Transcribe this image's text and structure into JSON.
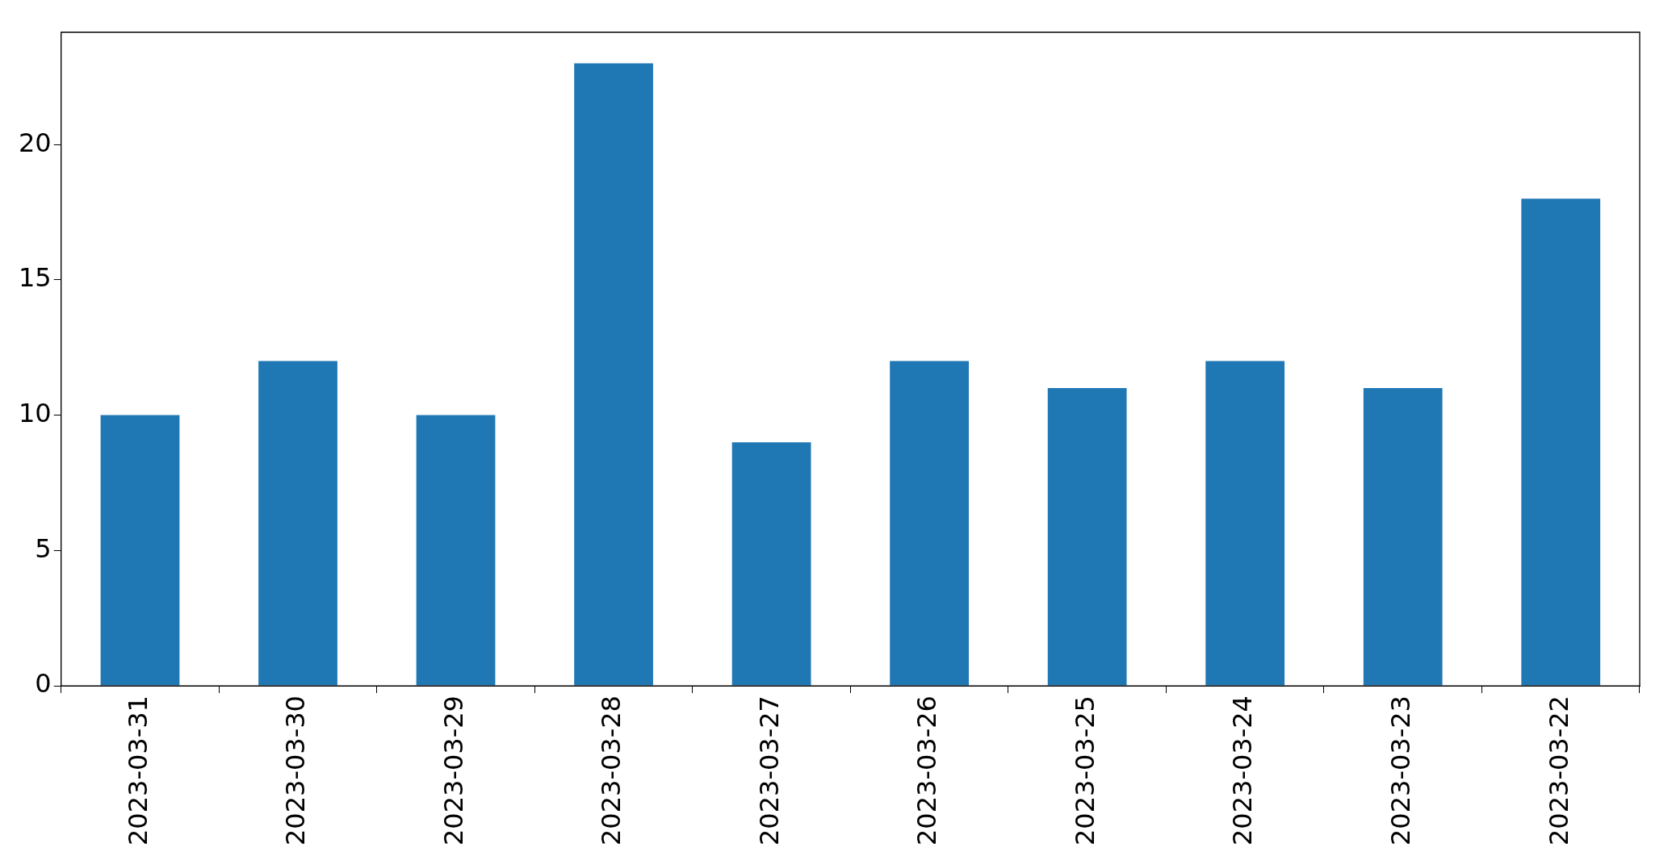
{
  "chart_data": {
    "type": "bar",
    "categories": [
      "2023-03-31",
      "2023-03-30",
      "2023-03-29",
      "2023-03-28",
      "2023-03-27",
      "2023-03-26",
      "2023-03-25",
      "2023-03-24",
      "2023-03-23",
      "2023-03-22"
    ],
    "values": [
      10,
      12,
      10,
      23,
      9,
      12,
      11,
      12,
      11,
      18
    ],
    "color": "#1f77b4",
    "ylim": [
      0,
      24.15
    ],
    "yticks": [
      0,
      5,
      10,
      15,
      20
    ],
    "grid": false,
    "legend": false
  }
}
